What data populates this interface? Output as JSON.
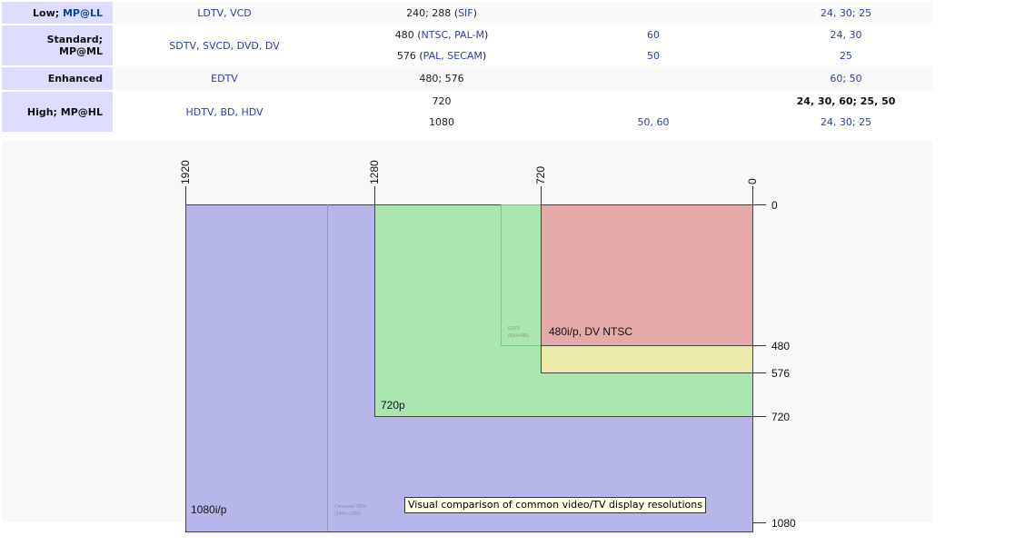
{
  "table": {
    "rows": [
      {
        "level_prefix": "Low; ",
        "level_link": "MP@LL",
        "formats": "LDTV, VCD",
        "lines": [
          {
            "text": "240; 288 (",
            "link": "SIF",
            "suffix": ")"
          }
        ],
        "rates": [
          ""
        ],
        "fps": [
          "24, 30; 25"
        ]
      },
      {
        "level": "Standard; MP@ML",
        "formats": "SDTV, SVCD, DVD, DV",
        "lines": [
          {
            "text": "480 (",
            "link": "NTSC, PAL-M",
            "suffix": ")"
          },
          {
            "text": "576 (",
            "link": "PAL, SECAM",
            "suffix": ")"
          }
        ],
        "rates": [
          "60",
          "50"
        ],
        "fps": [
          "24, 30",
          "25"
        ]
      },
      {
        "level": "Enhanced",
        "formats": "EDTV",
        "lines": [
          {
            "text": "480; 576"
          }
        ],
        "rates": [
          ""
        ],
        "fps": [
          "60; 50"
        ]
      },
      {
        "level": "High; MP@HL",
        "formats": "HDTV, BD, HDV",
        "lines": [
          {
            "text": "720"
          },
          {
            "text": "1080"
          }
        ],
        "rates": [
          "",
          "50, 60"
        ],
        "fps": [
          "24, 30, 60; 25, 50",
          "24, 30; 25"
        ]
      }
    ]
  },
  "figure": {
    "top_ticks": [
      "1920",
      "1280",
      "720",
      "0"
    ],
    "right_ticks": [
      "0",
      "480",
      "576",
      "720",
      "1080"
    ],
    "labels": {
      "ntsc": "480i/p, DV NTSC",
      "hd720": "720p",
      "hd1080": "1080i/p",
      "edtv": "EDTV",
      "edtv_size": "(854×480)",
      "hdv": "Consumer HDV",
      "hdv_size": "(1440×1080)"
    },
    "colors": {
      "hd1080": "#b6b6ea",
      "hd720": "#a9e6b0",
      "ntsc": "#e6a9a9",
      "pal": "#ecebaa"
    },
    "tooltip": "Visual comparison of common video/TV display resolutions"
  }
}
